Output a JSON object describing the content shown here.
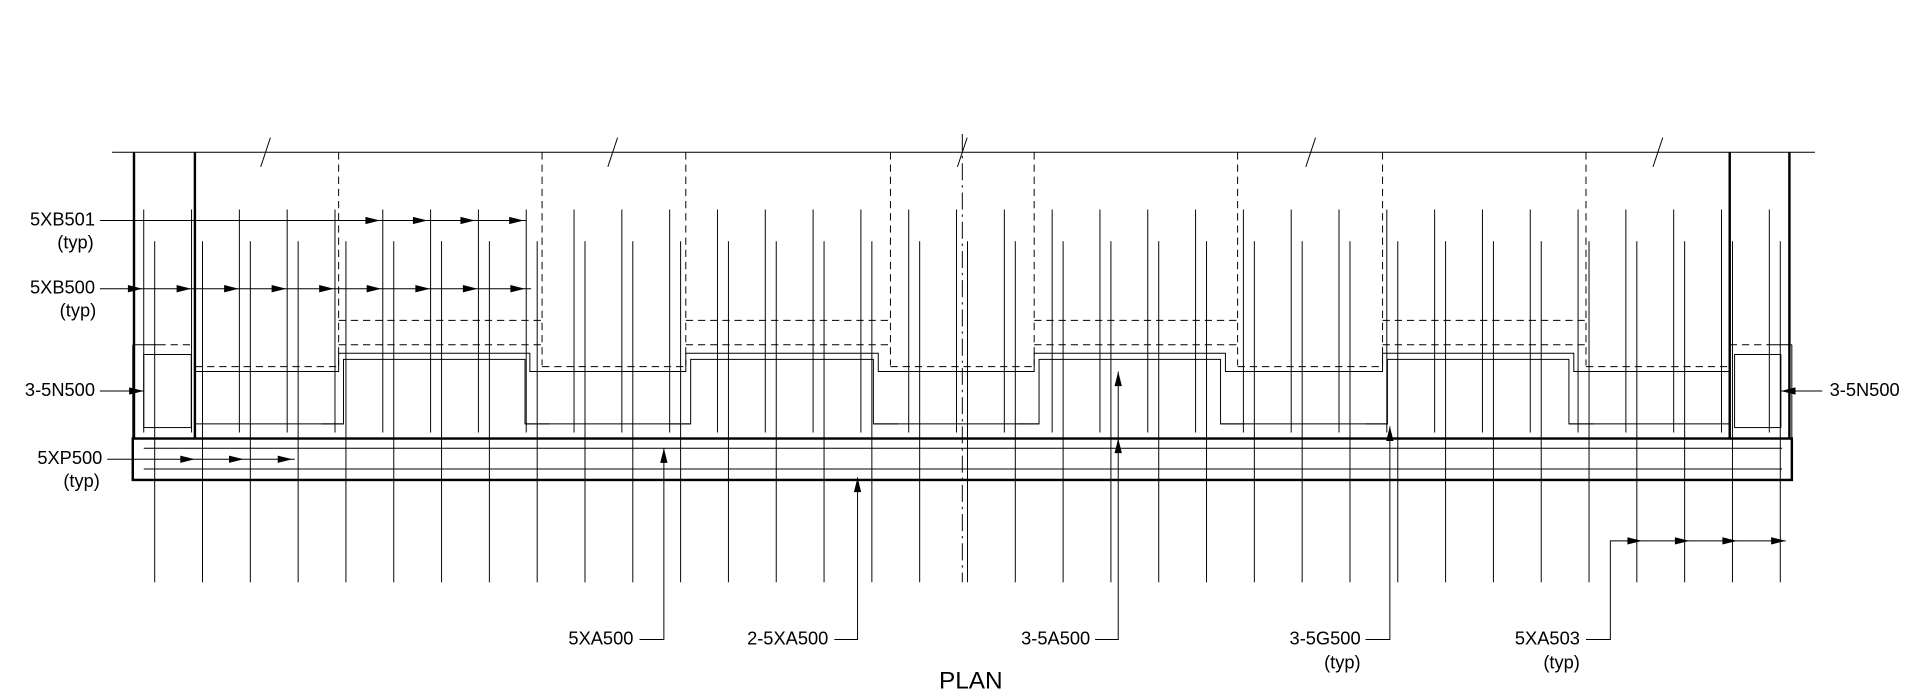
{
  "title": "PLAN",
  "labels": [
    {
      "text": "5XB501",
      "note": "(typ)"
    },
    {
      "text": "5XB500",
      "note": "(typ)"
    },
    {
      "text": "3-5N500"
    },
    {
      "text": "3-5N500"
    },
    {
      "text": "5XP500",
      "note": "(typ)"
    },
    {
      "text": "5XA500"
    },
    {
      "text": "2-5XA500"
    },
    {
      "text": "3-5A500"
    },
    {
      "text": "3-5G500",
      "note": "(typ)"
    },
    {
      "text": "5XA503",
      "note": "(typ)"
    }
  ]
}
